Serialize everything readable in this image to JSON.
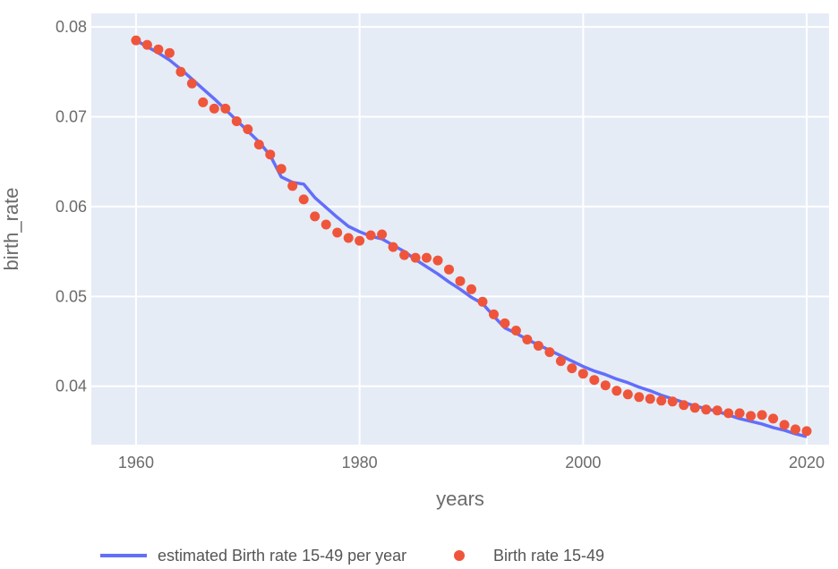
{
  "chart_data": {
    "type": "scatter",
    "xlabel": "years",
    "ylabel": "birth_rate",
    "xlim": [
      1956,
      2022
    ],
    "ylim": [
      0.0335,
      0.0815
    ],
    "x_ticks": [
      1960,
      1980,
      2000,
      2020
    ],
    "x_tick_labels": [
      "1960",
      "1980",
      "2000",
      "2020"
    ],
    "y_ticks": [
      0.04,
      0.05,
      0.06,
      0.07,
      0.08
    ],
    "y_tick_labels": [
      "0.04",
      "0.05",
      "0.06",
      "0.07",
      "0.08"
    ],
    "grid": true,
    "legend_position": "bottom",
    "series": [
      {
        "name": "estimated Birth rate 15-49 per year",
        "mode": "line",
        "color": "#636efa",
        "x": [
          1960,
          1961,
          1962,
          1963,
          1964,
          1965,
          1966,
          1967,
          1968,
          1969,
          1970,
          1971,
          1972,
          1973,
          1974,
          1975,
          1976,
          1977,
          1978,
          1979,
          1980,
          1981,
          1982,
          1983,
          1984,
          1985,
          1986,
          1987,
          1988,
          1989,
          1990,
          1991,
          1992,
          1993,
          1994,
          1995,
          1996,
          1997,
          1998,
          1999,
          2000,
          2001,
          2002,
          2003,
          2004,
          2005,
          2006,
          2007,
          2008,
          2009,
          2010,
          2011,
          2012,
          2013,
          2014,
          2015,
          2016,
          2017,
          2018,
          2019,
          2020
        ],
        "y": [
          0.0785,
          0.0778,
          0.0771,
          0.0763,
          0.0753,
          0.0742,
          0.0731,
          0.072,
          0.0708,
          0.0696,
          0.0684,
          0.0672,
          0.0657,
          0.0633,
          0.0627,
          0.0625,
          0.061,
          0.0599,
          0.0588,
          0.0578,
          0.0572,
          0.0567,
          0.0564,
          0.0557,
          0.055,
          0.0541,
          0.0533,
          0.0525,
          0.0516,
          0.0508,
          0.0499,
          0.0492,
          0.0478,
          0.0465,
          0.0459,
          0.0452,
          0.0446,
          0.044,
          0.0434,
          0.0428,
          0.0422,
          0.0417,
          0.0413,
          0.0408,
          0.0404,
          0.0399,
          0.0395,
          0.039,
          0.0386,
          0.0382,
          0.0378,
          0.0375,
          0.0372,
          0.0368,
          0.0364,
          0.0361,
          0.0358,
          0.0354,
          0.0351,
          0.0347,
          0.0344
        ]
      },
      {
        "name": "Birth rate 15-49",
        "mode": "markers",
        "color": "#ef553b",
        "x": [
          1960,
          1961,
          1962,
          1963,
          1964,
          1965,
          1966,
          1967,
          1968,
          1969,
          1970,
          1971,
          1972,
          1973,
          1974,
          1975,
          1976,
          1977,
          1978,
          1979,
          1980,
          1981,
          1982,
          1983,
          1984,
          1985,
          1986,
          1987,
          1988,
          1989,
          1990,
          1991,
          1992,
          1993,
          1994,
          1995,
          1996,
          1997,
          1998,
          1999,
          2000,
          2001,
          2002,
          2003,
          2004,
          2005,
          2006,
          2007,
          2008,
          2009,
          2010,
          2011,
          2012,
          2013,
          2014,
          2015,
          2016,
          2017,
          2018,
          2019,
          2020
        ],
        "y": [
          0.0785,
          0.078,
          0.0775,
          0.0771,
          0.075,
          0.0737,
          0.0716,
          0.0709,
          0.0709,
          0.0695,
          0.0686,
          0.0669,
          0.0658,
          0.0642,
          0.0623,
          0.0608,
          0.0589,
          0.058,
          0.0571,
          0.0565,
          0.0562,
          0.0568,
          0.0569,
          0.0555,
          0.0546,
          0.0543,
          0.0543,
          0.054,
          0.053,
          0.0517,
          0.0508,
          0.0494,
          0.048,
          0.047,
          0.0462,
          0.0452,
          0.0445,
          0.0438,
          0.0428,
          0.042,
          0.0414,
          0.0407,
          0.0401,
          0.0395,
          0.0391,
          0.0388,
          0.0386,
          0.0384,
          0.0383,
          0.0379,
          0.0376,
          0.0374,
          0.0373,
          0.037,
          0.037,
          0.0367,
          0.0368,
          0.0364,
          0.0357,
          0.0352,
          0.035
        ]
      }
    ]
  }
}
